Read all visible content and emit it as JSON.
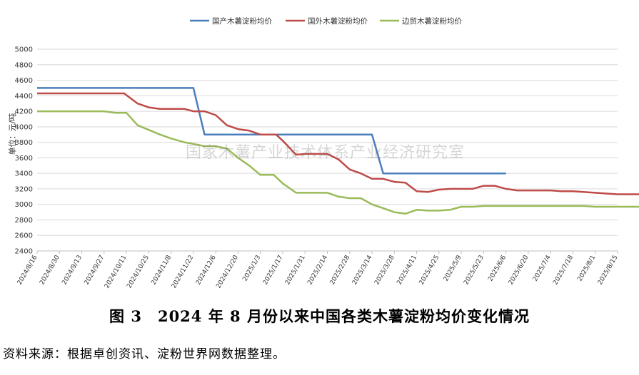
{
  "chart_data": {
    "type": "line",
    "ylabel": "单位：元/吨",
    "ylim": [
      2400,
      5000
    ],
    "yticks": [
      2400,
      2600,
      2800,
      3000,
      3200,
      3400,
      3600,
      3800,
      4000,
      4200,
      4400,
      4600,
      4800,
      5000
    ],
    "grid": true,
    "legend_position": "top",
    "categories": [
      "2024/8/16",
      "2024/8/30",
      "2024/9/13",
      "2024/9/27",
      "2024/10/11",
      "2024/10/25",
      "2024/11/8",
      "2024/11/22",
      "2024/12/6",
      "2024/12/20",
      "2025/1/3",
      "2025/1/17",
      "2025/1/31",
      "2025/2/14",
      "2025/2/28",
      "2025/3/14",
      "2025/3/28",
      "2025/4/11",
      "2025/4/25",
      "2025/5/9",
      "2025/5/23",
      "2025/6/6",
      "2025/6/20",
      "2025/7/4",
      "2025/7/18",
      "2025/8/1",
      "2025/8/15"
    ],
    "series": [
      {
        "name": "国产木薯淀粉均价",
        "color": "#4a7ebb",
        "points": [
          [
            0,
            4500
          ],
          [
            7,
            4500
          ],
          [
            7.5,
            3900
          ],
          [
            15,
            3900
          ],
          [
            15.5,
            3400
          ],
          [
            21,
            3400
          ]
        ]
      },
      {
        "name": "国外木薯淀粉均价",
        "color": "#be4b48",
        "points": [
          [
            0,
            4430
          ],
          [
            1,
            4430
          ],
          [
            2,
            4430
          ],
          [
            3,
            4430
          ],
          [
            3.9,
            4430
          ],
          [
            4.5,
            4300
          ],
          [
            5,
            4250
          ],
          [
            5.5,
            4230
          ],
          [
            6,
            4230
          ],
          [
            6.6,
            4230
          ],
          [
            7,
            4200
          ],
          [
            7.5,
            4200
          ],
          [
            8,
            4150
          ],
          [
            8.5,
            4020
          ],
          [
            9,
            3970
          ],
          [
            9.5,
            3950
          ],
          [
            10,
            3900
          ],
          [
            10.7,
            3900
          ],
          [
            11,
            3820
          ],
          [
            11.6,
            3640
          ],
          [
            12,
            3650
          ],
          [
            13,
            3650
          ],
          [
            13.5,
            3580
          ],
          [
            14,
            3450
          ],
          [
            14.5,
            3400
          ],
          [
            15,
            3330
          ],
          [
            15.5,
            3330
          ],
          [
            16,
            3290
          ],
          [
            16.5,
            3280
          ],
          [
            17,
            3170
          ],
          [
            17.5,
            3160
          ],
          [
            18,
            3190
          ],
          [
            18.5,
            3200
          ],
          [
            19,
            3200
          ],
          [
            19.5,
            3200
          ],
          [
            20,
            3240
          ],
          [
            20.5,
            3240
          ],
          [
            21,
            3200
          ],
          [
            21.5,
            3180
          ],
          [
            22,
            3180
          ],
          [
            23,
            3180
          ],
          [
            23.5,
            3170
          ],
          [
            24,
            3170
          ],
          [
            25,
            3150
          ],
          [
            25.5,
            3140
          ],
          [
            26,
            3130
          ],
          [
            27,
            3130
          ]
        ]
      },
      {
        "name": "边贸木薯淀粉均价",
        "color": "#9bbb59",
        "points": [
          [
            0,
            4200
          ],
          [
            1,
            4200
          ],
          [
            2,
            4200
          ],
          [
            3,
            4200
          ],
          [
            3.5,
            4180
          ],
          [
            4,
            4180
          ],
          [
            4.5,
            4020
          ],
          [
            5,
            3960
          ],
          [
            5.5,
            3900
          ],
          [
            6,
            3850
          ],
          [
            6.6,
            3800
          ],
          [
            7,
            3780
          ],
          [
            7.5,
            3750
          ],
          [
            8,
            3750
          ],
          [
            8.5,
            3720
          ],
          [
            9,
            3600
          ],
          [
            9.5,
            3500
          ],
          [
            10,
            3380
          ],
          [
            10.6,
            3380
          ],
          [
            11,
            3270
          ],
          [
            11.6,
            3150
          ],
          [
            12,
            3150
          ],
          [
            13,
            3150
          ],
          [
            13.5,
            3100
          ],
          [
            14,
            3080
          ],
          [
            14.5,
            3080
          ],
          [
            15,
            3000
          ],
          [
            15.5,
            2950
          ],
          [
            16,
            2900
          ],
          [
            16.5,
            2880
          ],
          [
            17,
            2930
          ],
          [
            17.5,
            2920
          ],
          [
            18,
            2920
          ],
          [
            18.5,
            2930
          ],
          [
            19,
            2970
          ],
          [
            19.5,
            2970
          ],
          [
            20,
            2980
          ],
          [
            21,
            2980
          ],
          [
            22,
            2980
          ],
          [
            23,
            2980
          ],
          [
            24,
            2980
          ],
          [
            24.5,
            2980
          ],
          [
            25,
            2970
          ],
          [
            26,
            2970
          ],
          [
            27,
            2970
          ]
        ]
      }
    ]
  },
  "figure_title": "图 3　2024 年 8 月份以来中国各类木薯淀粉均价变化情况",
  "source_note": "资料来源：根据卓创资讯、淀粉世界网数据整理。",
  "watermark": "国家木薯产业技术体系产业经济研究室"
}
